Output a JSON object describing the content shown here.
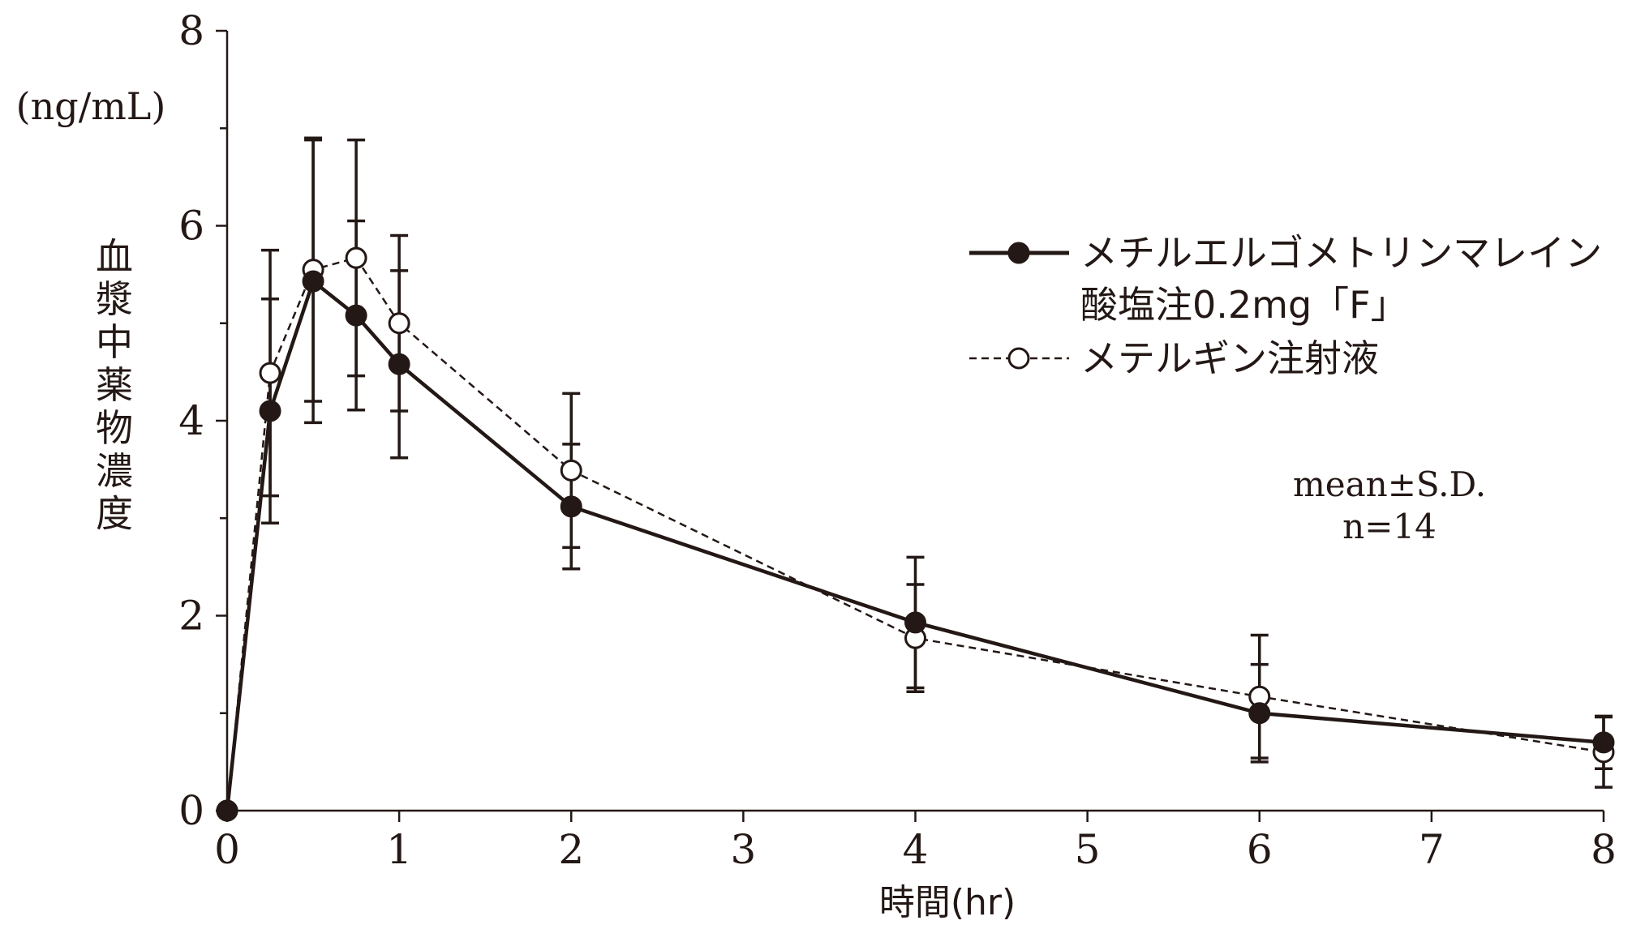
{
  "chart_data": {
    "type": "line",
    "ylabel": "血漿中薬物濃度",
    "yunit": "(ng/mL)",
    "xlabel": "時間(hr)",
    "xlim": [
      0,
      8
    ],
    "ylim": [
      0,
      8
    ],
    "xticks": [
      "0",
      "1",
      "2",
      "3",
      "4",
      "5",
      "6",
      "7",
      "8"
    ],
    "yticks": [
      "0",
      "2",
      "4",
      "6",
      "8"
    ],
    "legend_position": "top-right",
    "grid": false,
    "series": [
      {
        "name": "メチルエルゴメトリンマレイン酸塩注0.2mg「F」",
        "legend_lines": [
          "メチルエルゴメトリンマレイン",
          "酸塩注0.2mg「F」"
        ],
        "marker": "filled-circle",
        "line": "solid",
        "color": "#231815",
        "x": [
          0,
          0.25,
          0.5,
          0.75,
          1,
          2,
          4,
          6,
          8
        ],
        "y": [
          0,
          4.1,
          5.43,
          5.08,
          4.58,
          3.12,
          1.93,
          1.0,
          0.7
        ],
        "sd": [
          0,
          1.15,
          1.45,
          0.97,
          0.96,
          0.64,
          0.67,
          0.5,
          0.27
        ]
      },
      {
        "name": "メテルギン注射液",
        "legend_lines": [
          "メテルギン注射液"
        ],
        "marker": "open-circle",
        "line": "dashed",
        "color": "#231815",
        "x": [
          0,
          0.25,
          0.5,
          0.75,
          1,
          2,
          4,
          6,
          8
        ],
        "y": [
          0,
          4.49,
          5.55,
          5.67,
          5.0,
          3.49,
          1.77,
          1.17,
          0.6
        ],
        "sd": [
          0,
          1.26,
          1.35,
          1.21,
          0.9,
          0.79,
          0.55,
          0.63,
          0.36
        ]
      }
    ],
    "annotation": [
      "mean±S.D.",
      "n=14"
    ]
  }
}
